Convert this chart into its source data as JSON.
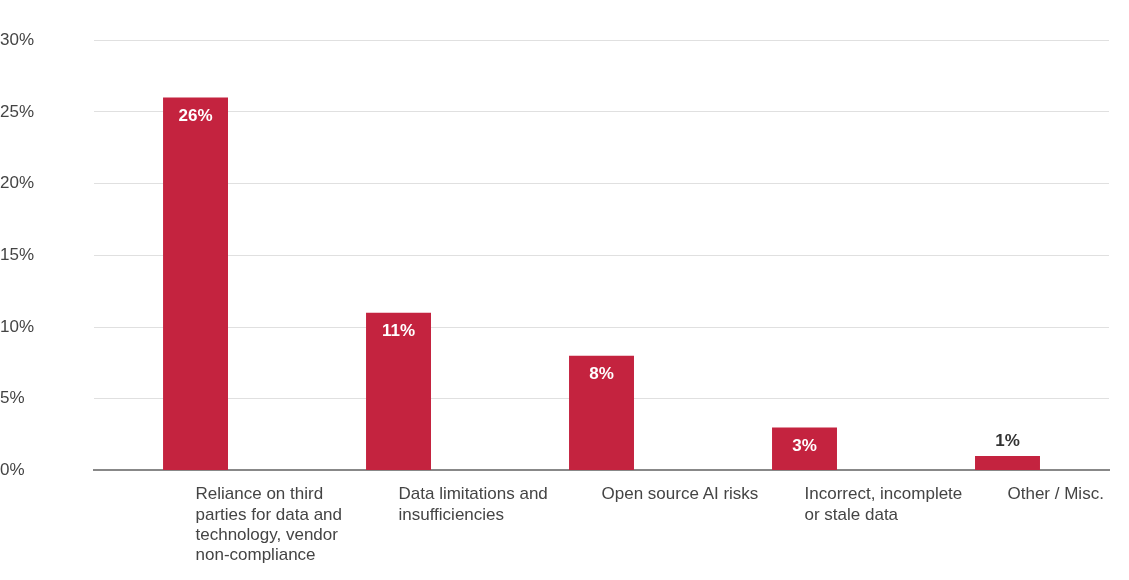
{
  "chart_data": {
    "type": "bar",
    "categories": [
      "Reliance on third parties for data and technology, vendor non-compliance",
      "Data limitations and insufficiencies",
      "Open source AI risks",
      "Incorrect, incomplete or stale data",
      "Other / Misc."
    ],
    "values": [
      26,
      11,
      8,
      3,
      1
    ],
    "value_labels": [
      "26%",
      "11%",
      "8%",
      "3%",
      "1%"
    ],
    "color": "#c4233f",
    "ylim": [
      0,
      30
    ],
    "yticks": [
      {
        "value": 0,
        "label": "0%"
      },
      {
        "value": 5,
        "label": "5%"
      },
      {
        "value": 10,
        "label": "10%"
      },
      {
        "value": 15,
        "label": "15%"
      },
      {
        "value": 20,
        "label": "20%"
      },
      {
        "value": 25,
        "label": "25%"
      },
      {
        "value": 30,
        "label": "30%"
      }
    ],
    "grid": "y",
    "legend": false
  }
}
